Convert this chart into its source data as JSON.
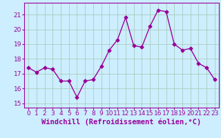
{
  "x": [
    0,
    1,
    2,
    3,
    4,
    5,
    6,
    7,
    8,
    9,
    10,
    11,
    12,
    13,
    14,
    15,
    16,
    17,
    18,
    19,
    20,
    21,
    22,
    23
  ],
  "y": [
    17.4,
    17.1,
    17.4,
    17.3,
    16.5,
    16.5,
    15.4,
    16.5,
    16.6,
    17.5,
    18.6,
    19.3,
    20.8,
    18.9,
    18.8,
    20.2,
    21.3,
    21.2,
    19.0,
    18.6,
    18.7,
    17.7,
    17.4,
    16.6
  ],
  "line_color": "#990099",
  "marker": "D",
  "markersize": 2.5,
  "linewidth": 1.0,
  "bg_color": "#cceeff",
  "grid_color": "#aaccbb",
  "xlabel": "Windchill (Refroidissement éolien,°C)",
  "ylim": [
    14.7,
    21.8
  ],
  "xlim": [
    -0.5,
    23.5
  ],
  "yticks": [
    15,
    16,
    17,
    18,
    19,
    20,
    21
  ],
  "xticks": [
    0,
    1,
    2,
    3,
    4,
    5,
    6,
    7,
    8,
    9,
    10,
    11,
    12,
    13,
    14,
    15,
    16,
    17,
    18,
    19,
    20,
    21,
    22,
    23
  ],
  "tick_color": "#990099",
  "label_color": "#990099",
  "xlabel_fontsize": 7.5,
  "tick_fontsize": 6.5
}
